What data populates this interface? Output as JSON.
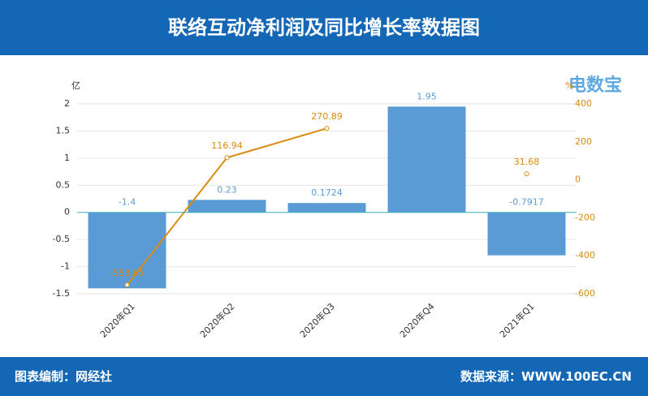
{
  "header": {
    "title": "联络互动净利润及同比增长率数据图",
    "logo": "电数宝"
  },
  "footer": {
    "left": "图表编制：网经社",
    "right": "数据来源：WWW.100EC.CN"
  },
  "chart_data": {
    "type": "bar",
    "y_unit": "亿",
    "y2_unit": "%",
    "categories": [
      "2020年Q1",
      "2020年Q2",
      "2020年Q3",
      "2020年Q4",
      "2021年Q1"
    ],
    "series": [
      {
        "type": "bar",
        "color": "#5b9bd5",
        "values": [
          -1.4,
          0.23,
          0.1724,
          1.95,
          -0.7917
        ]
      },
      {
        "type": "line",
        "axis": "y2",
        "color": "#d98c0e",
        "values": [
          -553.65,
          116.94,
          270.89,
          null,
          31.68
        ]
      }
    ],
    "ylim": [
      -1.5,
      2
    ],
    "yticks": [
      -1.5,
      -1,
      -0.5,
      0,
      0.5,
      1,
      1.5,
      2
    ],
    "y2lim": [
      -600,
      400
    ],
    "y2ticks": [
      -600,
      -400,
      -200,
      0,
      200,
      400
    ],
    "grid": true
  }
}
